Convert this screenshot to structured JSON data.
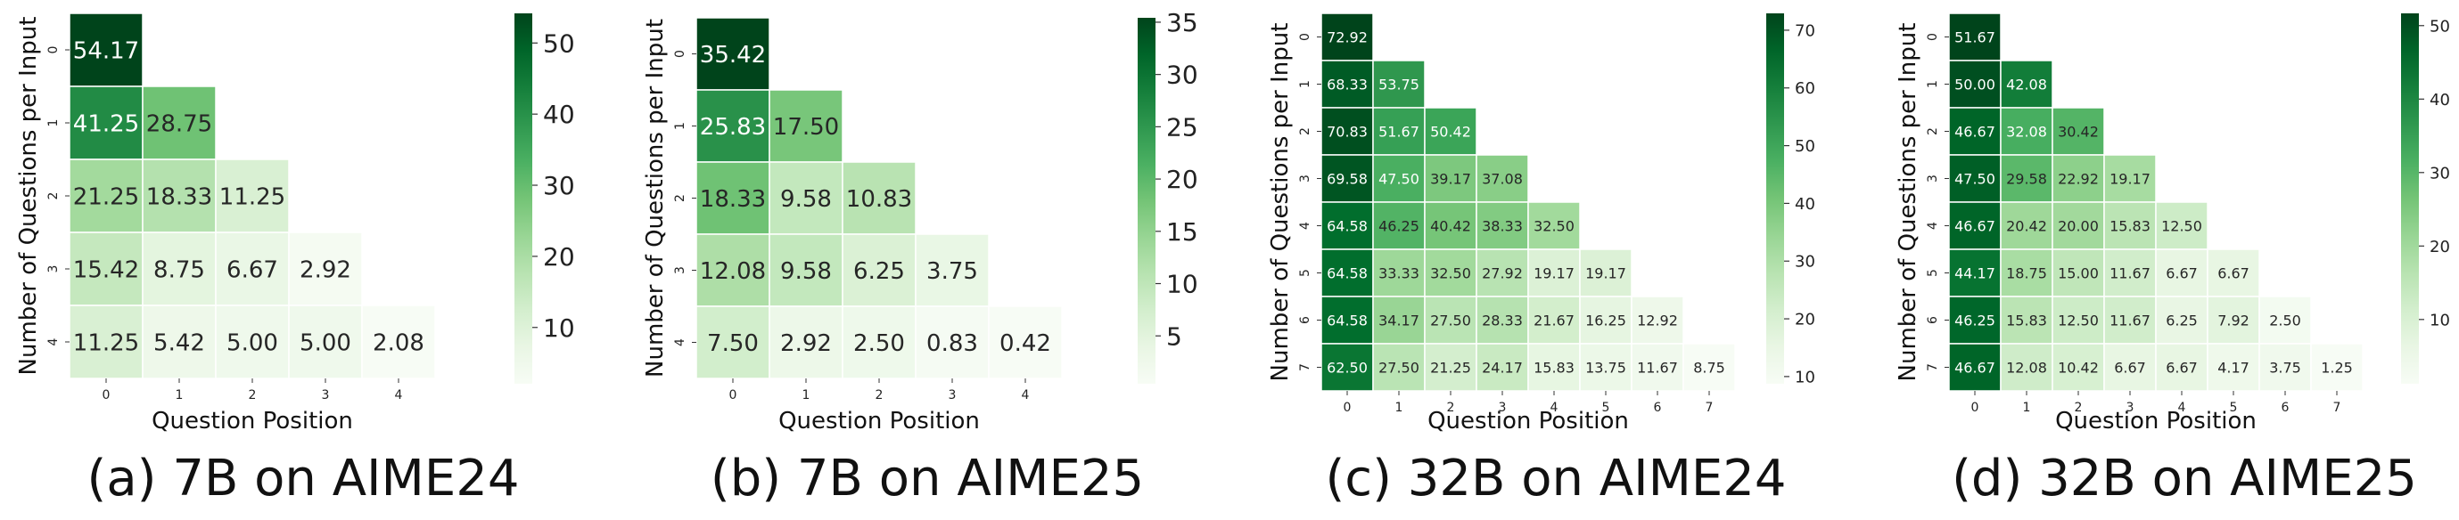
{
  "chart_data": [
    {
      "type": "heatmap",
      "caption": "(a) 7B on AIME24",
      "xlabel": "Question Position",
      "ylabel": "Number of Questions per Input",
      "x_ticks": [
        "0",
        "1",
        "2",
        "3",
        "4"
      ],
      "y_ticks": [
        "0",
        "1",
        "2",
        "3",
        "4"
      ],
      "values": [
        [
          54.17
        ],
        [
          41.25,
          28.75
        ],
        [
          21.25,
          18.33,
          11.25
        ],
        [
          15.42,
          8.75,
          6.67,
          2.92
        ],
        [
          11.25,
          5.42,
          5.0,
          5.0,
          2.08
        ]
      ],
      "value_labels": [
        [
          "54.17"
        ],
        [
          "41.25",
          "28.75"
        ],
        [
          "21.25",
          "18.33",
          "11.25"
        ],
        [
          "15.42",
          "8.75",
          "6.67",
          "2.92"
        ],
        [
          "11.25",
          "5.42",
          "5.00",
          "5.00",
          "2.08"
        ]
      ],
      "colorbar_ticks": [
        10,
        20,
        30,
        40,
        50
      ],
      "colorbar_range": [
        2.08,
        54.17
      ]
    },
    {
      "type": "heatmap",
      "caption": "(b) 7B on AIME25",
      "xlabel": "Question Position",
      "ylabel": "Number of Questions per Input",
      "x_ticks": [
        "0",
        "1",
        "2",
        "3",
        "4"
      ],
      "y_ticks": [
        "0",
        "1",
        "2",
        "3",
        "4"
      ],
      "values": [
        [
          35.42
        ],
        [
          25.83,
          17.5
        ],
        [
          18.33,
          9.58,
          10.83
        ],
        [
          12.08,
          9.58,
          6.25,
          3.75
        ],
        [
          7.5,
          2.92,
          2.5,
          0.83,
          0.42
        ]
      ],
      "value_labels": [
        [
          "35.42"
        ],
        [
          "25.83",
          "17.50"
        ],
        [
          "18.33",
          "9.58",
          "10.83"
        ],
        [
          "12.08",
          "9.58",
          "6.25",
          "3.75"
        ],
        [
          "7.50",
          "2.92",
          "2.50",
          "0.83",
          "0.42"
        ]
      ],
      "colorbar_ticks": [
        5,
        10,
        15,
        20,
        25,
        30,
        35
      ],
      "colorbar_range": [
        0.42,
        35.42
      ]
    },
    {
      "type": "heatmap",
      "caption": "(c) 32B on AIME24",
      "xlabel": "Question Position",
      "ylabel": "Number of Questions per Input",
      "x_ticks": [
        "0",
        "1",
        "2",
        "3",
        "4",
        "5",
        "6",
        "7"
      ],
      "y_ticks": [
        "0",
        "1",
        "2",
        "3",
        "4",
        "5",
        "6",
        "7"
      ],
      "values": [
        [
          72.92
        ],
        [
          68.33,
          53.75
        ],
        [
          70.83,
          51.67,
          50.42
        ],
        [
          69.58,
          47.5,
          39.17,
          37.08
        ],
        [
          64.58,
          46.25,
          40.42,
          38.33,
          32.5
        ],
        [
          64.58,
          33.33,
          32.5,
          27.92,
          19.17,
          19.17
        ],
        [
          64.58,
          34.17,
          27.5,
          28.33,
          21.67,
          16.25,
          12.92
        ],
        [
          62.5,
          27.5,
          21.25,
          24.17,
          15.83,
          13.75,
          11.67,
          8.75
        ]
      ],
      "value_labels": [
        [
          "72.92"
        ],
        [
          "68.33",
          "53.75"
        ],
        [
          "70.83",
          "51.67",
          "50.42"
        ],
        [
          "69.58",
          "47.50",
          "39.17",
          "37.08"
        ],
        [
          "64.58",
          "46.25",
          "40.42",
          "38.33",
          "32.50"
        ],
        [
          "64.58",
          "33.33",
          "32.50",
          "27.92",
          "19.17",
          "19.17"
        ],
        [
          "64.58",
          "34.17",
          "27.50",
          "28.33",
          "21.67",
          "16.25",
          "12.92"
        ],
        [
          "62.50",
          "27.50",
          "21.25",
          "24.17",
          "15.83",
          "13.75",
          "11.67",
          "8.75"
        ]
      ],
      "colorbar_ticks": [
        10,
        20,
        30,
        40,
        50,
        60,
        70
      ],
      "colorbar_range": [
        8.75,
        72.92
      ]
    },
    {
      "type": "heatmap",
      "caption": "(d) 32B on AIME25",
      "xlabel": "Question Position",
      "ylabel": "Number of Questions per Input",
      "x_ticks": [
        "0",
        "1",
        "2",
        "3",
        "4",
        "5",
        "6",
        "7"
      ],
      "y_ticks": [
        "0",
        "1",
        "2",
        "3",
        "4",
        "5",
        "6",
        "7"
      ],
      "values": [
        [
          51.67
        ],
        [
          50.0,
          42.08
        ],
        [
          46.67,
          32.08,
          30.42
        ],
        [
          47.5,
          29.58,
          22.92,
          19.17
        ],
        [
          46.67,
          20.42,
          20.0,
          15.83,
          12.5
        ],
        [
          44.17,
          18.75,
          15.0,
          11.67,
          6.67,
          6.67
        ],
        [
          46.25,
          15.83,
          12.5,
          11.67,
          6.25,
          7.92,
          2.5
        ],
        [
          46.67,
          12.08,
          10.42,
          6.67,
          6.67,
          4.17,
          3.75,
          1.25
        ]
      ],
      "value_labels": [
        [
          "51.67"
        ],
        [
          "50.00",
          "42.08"
        ],
        [
          "46.67",
          "32.08",
          "30.42"
        ],
        [
          "47.50",
          "29.58",
          "22.92",
          "19.17"
        ],
        [
          "46.67",
          "20.42",
          "20.00",
          "15.83",
          "12.50"
        ],
        [
          "44.17",
          "18.75",
          "15.00",
          "11.67",
          "6.67",
          "6.67"
        ],
        [
          "46.25",
          "15.83",
          "12.50",
          "11.67",
          "6.25",
          "7.92",
          "2.50"
        ],
        [
          "46.67",
          "12.08",
          "10.42",
          "6.67",
          "6.67",
          "4.17",
          "3.75",
          "1.25"
        ]
      ],
      "colorbar_ticks": [
        10,
        20,
        30,
        40,
        50
      ],
      "colorbar_range": [
        1.25,
        51.67
      ]
    }
  ]
}
